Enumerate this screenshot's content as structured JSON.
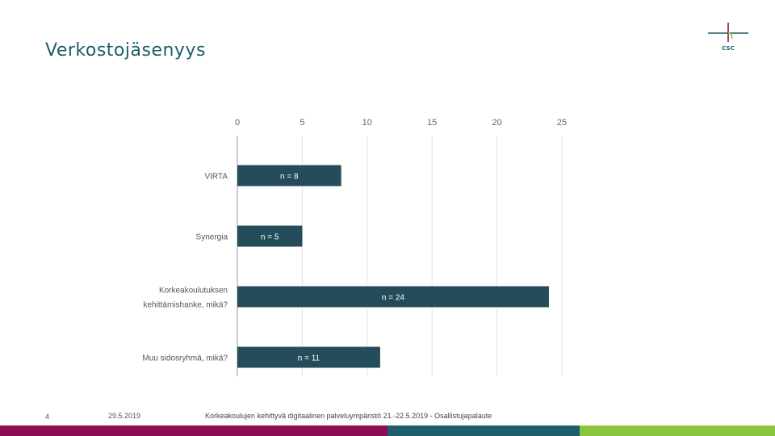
{
  "page": {
    "title": "Verkostojäsenyys",
    "logo_text": "CSC",
    "footer": {
      "slide_number": "4",
      "date": "29.5.2019",
      "text": "Korkeakoulujen kehittyvä digitaalinen palveluympäristö 21.-22.5.2019 - Osallistujapalaute"
    }
  },
  "colors": {
    "bar": "#244c5a",
    "title": "#1f5f6b",
    "stripes": [
      "#8b0e55",
      "#1f5f6b",
      "#8cc63f"
    ]
  },
  "chart_data": {
    "type": "bar",
    "orientation": "horizontal",
    "title": "Verkostojäsenyys",
    "categories": [
      [
        "VIRTA"
      ],
      [
        "Synergia"
      ],
      [
        "Korkeakoulutuksen",
        "kehittämishanke, mikä?"
      ],
      [
        "Muu sidosryhmä, mikä?"
      ]
    ],
    "values": [
      8,
      5,
      24,
      11
    ],
    "data_labels": [
      "n = 8",
      "n = 5",
      "n = 24",
      "n = 11"
    ],
    "xlim": [
      0,
      25
    ],
    "xticks": [
      0,
      5,
      10,
      15,
      20,
      25
    ],
    "xaxis_position": "top",
    "grid": true
  }
}
